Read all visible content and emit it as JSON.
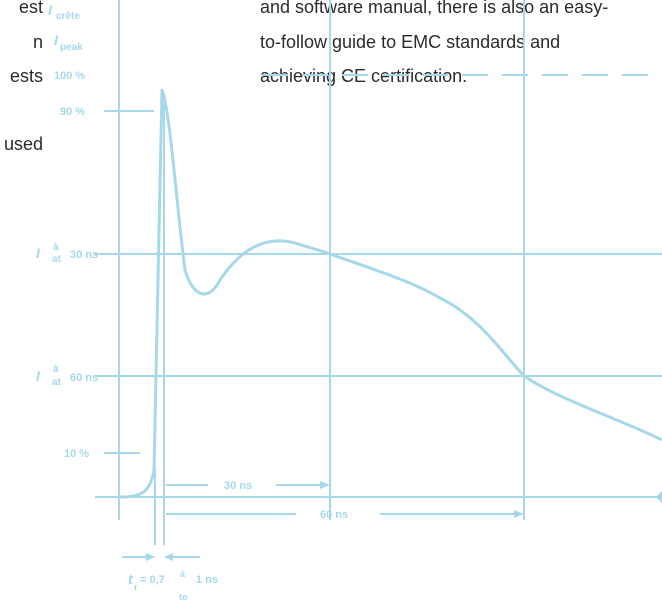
{
  "text": {
    "lines_right": [
      "and software manual, there is also an easy-",
      "to-follow guide to EMC standards and",
      "achieving CE certification."
    ],
    "lines_left": [
      "est",
      "n",
      "ests",
      "used"
    ]
  },
  "figure": {
    "labels": {
      "i_crete": "I",
      "crete": "crête",
      "i_peak": "I",
      "peak": "peak",
      "pct100": "100 %",
      "pct90": "90 %",
      "pct10": "10 %",
      "i30": "I",
      "a30": "à",
      "at30": "at",
      "ns30": "30 ns",
      "i60": "I",
      "a60": "à",
      "at60": "at",
      "ns60": "60 ns",
      "dim30": "30 ns",
      "dim60": "60 ns",
      "tr": "t",
      "tr_sub": "r",
      "tr_eq": "= 0,7",
      "tr_a": "à",
      "tr_to": "to",
      "tr_1ns": "1 ns"
    },
    "colors": {
      "figure": "#a6d8ea",
      "text": "#2b2b2b"
    }
  }
}
